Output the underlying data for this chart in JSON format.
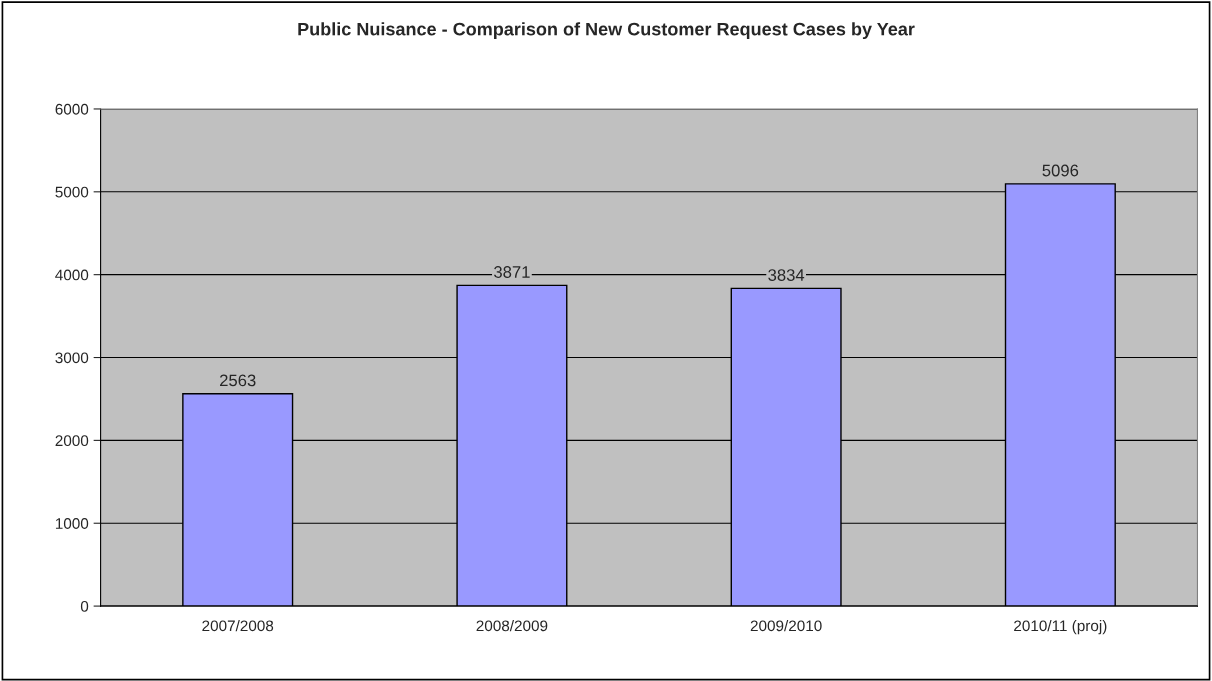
{
  "chart_data": {
    "type": "bar",
    "title": "Public Nuisance - Comparison of New Customer Request Cases by Year",
    "categories": [
      "2007/2008",
      "2008/2009",
      "2009/2010",
      "2010/11 (proj)"
    ],
    "values": [
      2563,
      3871,
      3834,
      5096
    ],
    "color": "#9999ff",
    "data_labels": true,
    "ylim": [
      0,
      6000
    ],
    "yticks": [
      0,
      1000,
      2000,
      3000,
      4000,
      5000,
      6000
    ],
    "grid": "y"
  }
}
